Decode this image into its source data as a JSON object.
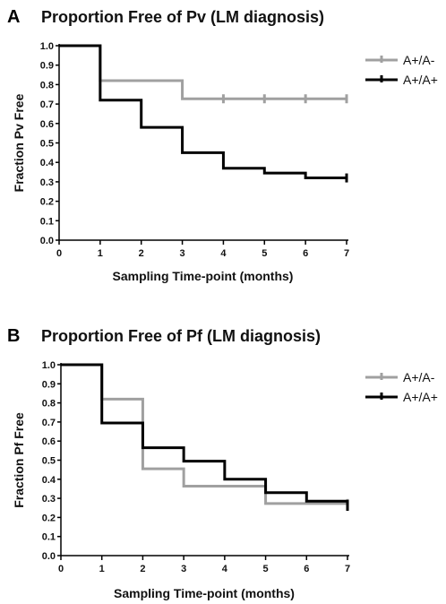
{
  "chart_data": [
    {
      "type": "line",
      "panel": "A",
      "title": "Proportion Free of Pv (LM diagnosis)",
      "xlabel": "Sampling Time-point (months)",
      "ylabel": "Fraction Pv Free",
      "xlim": [
        0,
        7
      ],
      "ylim": [
        0,
        1.0
      ],
      "x_ticks": [
        "0",
        "1",
        "2",
        "3",
        "4",
        "5",
        "6",
        "7"
      ],
      "y_ticks": [
        "0.0",
        "0.1",
        "0.2",
        "0.3",
        "0.4",
        "0.5",
        "0.6",
        "0.7",
        "0.8",
        "0.9",
        "1.0"
      ],
      "legend_position": "top-right",
      "series": [
        {
          "name": "A+/A-",
          "color": "#a0a0a0",
          "x": [
            0,
            1,
            3
          ],
          "y": [
            1.0,
            0.82,
            0.727
          ],
          "censored_x": [
            4,
            5,
            6,
            7
          ]
        },
        {
          "name": "A+/A+",
          "color": "#000000",
          "x": [
            0,
            1,
            2,
            3,
            4,
            5,
            6
          ],
          "y": [
            1.0,
            0.72,
            0.58,
            0.45,
            0.37,
            0.345,
            0.32
          ],
          "censored_x": [
            7
          ]
        }
      ]
    },
    {
      "type": "line",
      "panel": "B",
      "title": "Proportion Free of Pf (LM diagnosis)",
      "xlabel": "Sampling Time-point (months)",
      "ylabel": "Fraction Pf Free",
      "xlim": [
        0,
        7
      ],
      "ylim": [
        0,
        1.0
      ],
      "x_ticks": [
        "0",
        "1",
        "2",
        "3",
        "4",
        "5",
        "6",
        "7"
      ],
      "y_ticks": [
        "0.0",
        "0.1",
        "0.2",
        "0.3",
        "0.4",
        "0.5",
        "0.6",
        "0.7",
        "0.8",
        "0.9",
        "1.0"
      ],
      "legend_position": "top-right",
      "series": [
        {
          "name": "A+/A-",
          "color": "#a0a0a0",
          "x": [
            0,
            1,
            2,
            3,
            5
          ],
          "y": [
            1.0,
            0.82,
            0.455,
            0.364,
            0.273
          ],
          "censored_x": [
            7
          ]
        },
        {
          "name": "A+/A+",
          "color": "#000000",
          "x": [
            0,
            1,
            2,
            3,
            4,
            5,
            6,
            7
          ],
          "y": [
            1.0,
            0.695,
            0.565,
            0.495,
            0.4,
            0.33,
            0.285,
            0.235
          ],
          "censored_x": []
        }
      ]
    }
  ]
}
